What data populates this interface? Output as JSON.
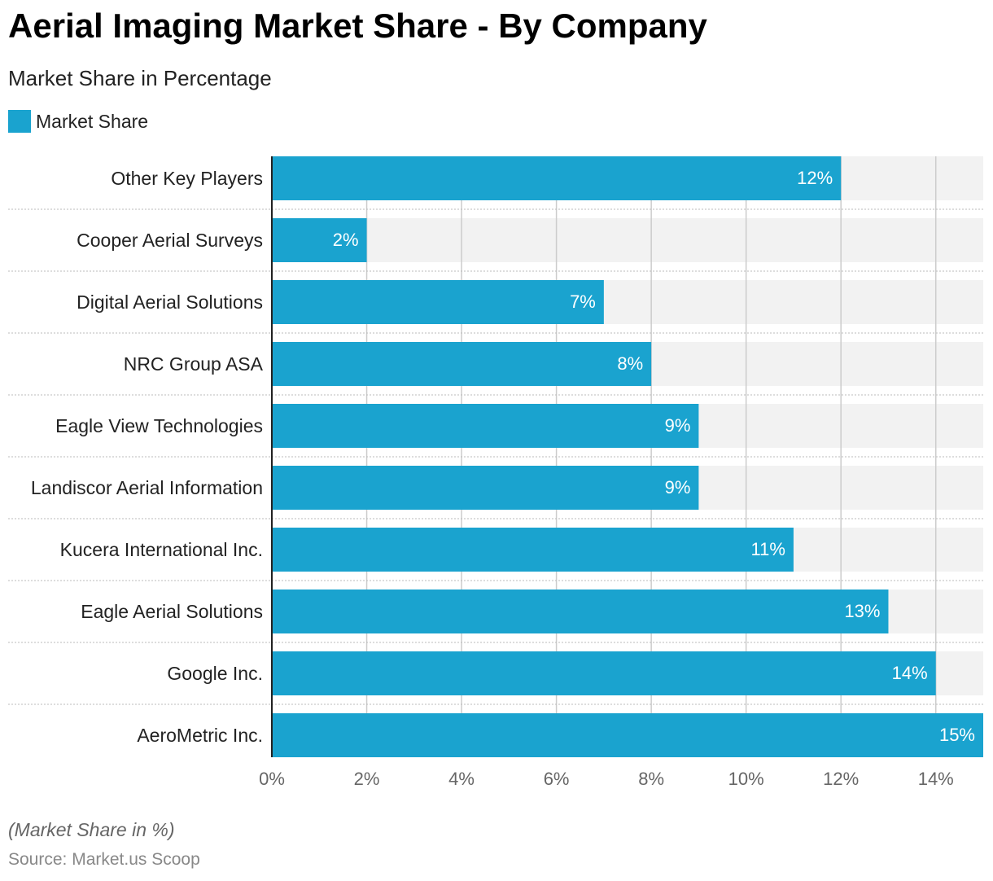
{
  "title": "Aerial Imaging Market Share - By Company",
  "subtitle": "Market Share in Percentage",
  "legend": {
    "label": "Market Share",
    "color": "#1aa3cf"
  },
  "footnote": "(Market Share in %)",
  "source": "Source: Market.us Scoop",
  "colors": {
    "bar": "#1aa3cf",
    "track": "#f2f2f2",
    "grid": "#cccccc",
    "bar_label": "#ffffff",
    "tick_label": "#666666"
  },
  "chart_data": {
    "type": "bar",
    "orientation": "horizontal",
    "categories": [
      "Other Key Players",
      "Cooper Aerial Surveys",
      "Digital Aerial Solutions",
      "NRC Group ASA",
      "Eagle View Technologies",
      "Landiscor Aerial Information",
      "Kucera International Inc.",
      "Eagle Aerial Solutions",
      "Google Inc.",
      "AeroMetric Inc."
    ],
    "series": [
      {
        "name": "Market Share",
        "values": [
          12,
          2,
          7,
          8,
          9,
          9,
          11,
          13,
          14,
          15
        ],
        "labels": [
          "12%",
          "2%",
          "7%",
          "8%",
          "9%",
          "9%",
          "11%",
          "13%",
          "14%",
          "15%"
        ]
      }
    ],
    "xlim": [
      0,
      15
    ],
    "xticks": [
      0,
      2,
      4,
      6,
      8,
      10,
      12,
      14
    ],
    "xtick_labels": [
      "0%",
      "2%",
      "4%",
      "6%",
      "8%",
      "10%",
      "12%",
      "14%"
    ],
    "grid": true,
    "legend_position": "top-left"
  }
}
